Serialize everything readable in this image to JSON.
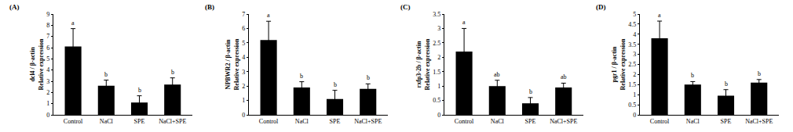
{
  "chart_data": [
    {
      "type": "bar",
      "panel": "(A)",
      "ylabel": [
        "dcl4 / β-actin",
        "Relative expression"
      ],
      "categories": [
        "Control",
        "NaCl",
        "SPE",
        "NaCl+SPE"
      ],
      "values": [
        6.1,
        2.6,
        1.1,
        2.7
      ],
      "errors": [
        1.6,
        0.5,
        0.6,
        0.6
      ],
      "annotations": [
        "a",
        "b",
        "b",
        "b"
      ],
      "color": "#000000",
      "ylim": [
        0,
        9
      ],
      "yticks": [
        0,
        1,
        2,
        3,
        4,
        5,
        6,
        7,
        8,
        9
      ]
    },
    {
      "type": "bar",
      "panel": "(B)",
      "ylabel": [
        "NPBWR2 / β-actin",
        "Relative expression"
      ],
      "categories": [
        "Control",
        "NaCl",
        "SPE",
        "NaCl+SPE"
      ],
      "values": [
        5.2,
        1.9,
        1.1,
        1.8
      ],
      "errors": [
        1.3,
        0.4,
        0.6,
        0.35
      ],
      "annotations": [
        "a",
        "b",
        "b",
        "b"
      ],
      "color": "#000000",
      "ylim": [
        0,
        7
      ],
      "yticks": [
        0,
        1,
        2,
        3,
        4,
        5,
        6,
        7
      ]
    },
    {
      "type": "bar",
      "panel": "(C)",
      "ylabel": [
        "rxfp3-2b / β-actin",
        "Relative expression"
      ],
      "categories": [
        "Control",
        "NaCl",
        "SPE",
        "NaCl+SPE"
      ],
      "values": [
        2.2,
        1.0,
        0.4,
        0.95
      ],
      "errors": [
        0.8,
        0.2,
        0.2,
        0.15
      ],
      "annotations": [
        "a",
        "ab",
        "b",
        "ab"
      ],
      "color": "#000000",
      "ylim": [
        0,
        3.5
      ],
      "yticks": [
        0,
        0.5,
        1,
        1.5,
        2,
        2.5,
        3,
        3.5
      ]
    },
    {
      "type": "bar",
      "panel": "(D)",
      "ylabel": [
        "pgr1 / β-actin",
        "Relative expression"
      ],
      "categories": [
        "Control",
        "NaCl",
        "SPE",
        "NaCl+SPE"
      ],
      "values": [
        3.8,
        1.5,
        0.95,
        1.6
      ],
      "errors": [
        0.85,
        0.15,
        0.3,
        0.15
      ],
      "annotations": [
        "a",
        "b",
        "b",
        "b"
      ],
      "color": "#000000",
      "ylim": [
        0,
        5
      ],
      "yticks": [
        0,
        0.5,
        1,
        1.5,
        2,
        2.5,
        3,
        3.5,
        4,
        4.5,
        5
      ]
    }
  ]
}
